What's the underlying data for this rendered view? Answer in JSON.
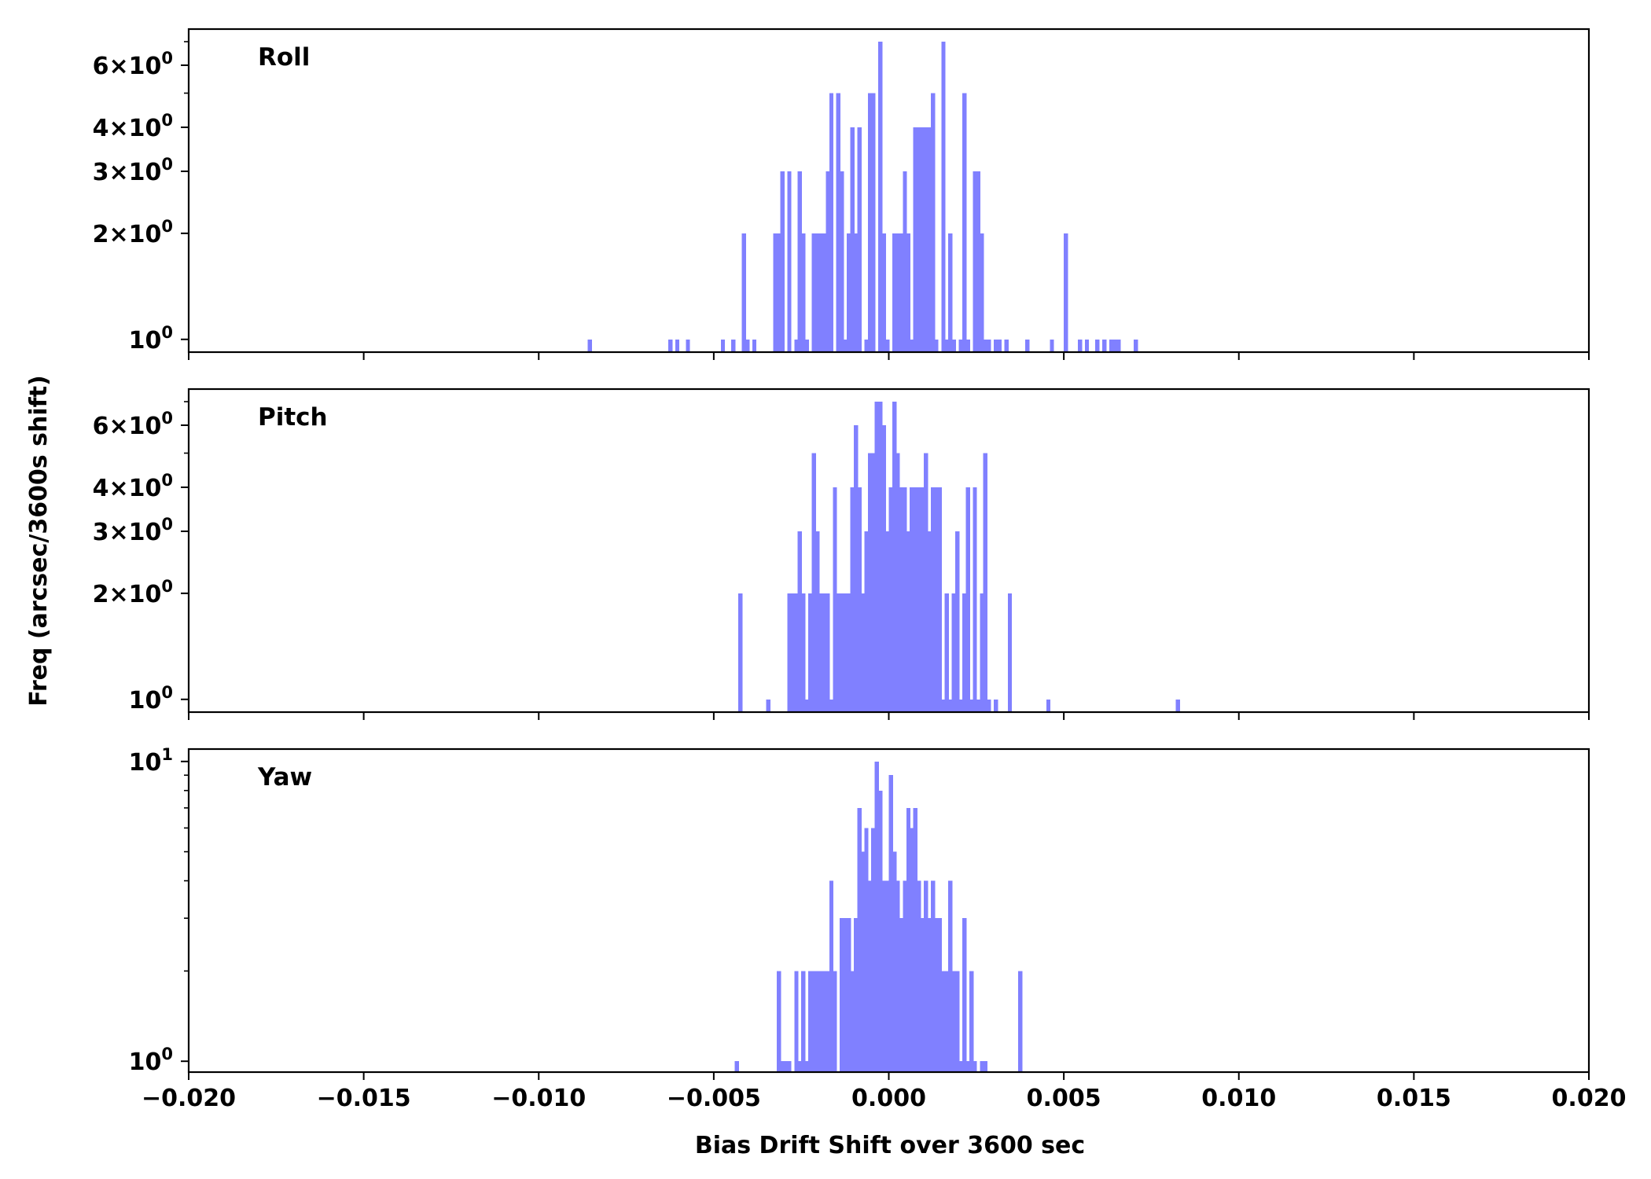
{
  "chart_data": {
    "type": "bar",
    "xlabel": "Bias Drift Shift over 3600 sec",
    "ylabel": "Freq (arcsec/3600s shift)",
    "xlim": [
      -0.02,
      0.02
    ],
    "xticks": [
      -0.02,
      -0.015,
      -0.01,
      -0.005,
      0.0,
      0.005,
      0.01,
      0.015,
      0.02
    ],
    "xtick_labels": [
      "−0.020",
      "−0.015",
      "−0.010",
      "−0.005",
      "0.000",
      "0.005",
      "0.010",
      "0.015",
      "0.020"
    ],
    "bar_color": "#8080ff",
    "bin_width": 0.00012,
    "grid": false,
    "panels": [
      {
        "name": "Roll",
        "yscale": "log",
        "ylim": [
          0.92,
          7.6
        ],
        "yticks": [
          {
            "value": 1,
            "base": "10",
            "exp": "0"
          },
          {
            "value": 2,
            "base": "2×10",
            "exp": "0"
          },
          {
            "value": 3,
            "base": "3×10",
            "exp": "0"
          },
          {
            "value": 4,
            "base": "4×10",
            "exp": "0"
          },
          {
            "value": 6,
            "base": "6×10",
            "exp": "0"
          }
        ],
        "minor_yticks": [
          5,
          7
        ],
        "bins": [
          [
            -0.0086,
            1
          ],
          [
            -0.0063,
            1
          ],
          [
            -0.0061,
            1
          ],
          [
            -0.0058,
            1
          ],
          [
            -0.0048,
            1
          ],
          [
            -0.0045,
            1
          ],
          [
            -0.0042,
            2
          ],
          [
            -0.0041,
            1
          ],
          [
            -0.0039,
            1
          ],
          [
            -0.0033,
            2
          ],
          [
            -0.0032,
            2
          ],
          [
            -0.0031,
            3
          ],
          [
            -0.0029,
            3
          ],
          [
            -0.0027,
            1
          ],
          [
            -0.0026,
            3
          ],
          [
            -0.0025,
            2
          ],
          [
            -0.0024,
            1
          ],
          [
            -0.0022,
            2
          ],
          [
            -0.0021,
            2
          ],
          [
            -0.002,
            2
          ],
          [
            -0.0019,
            2
          ],
          [
            -0.0018,
            3
          ],
          [
            -0.0017,
            5
          ],
          [
            -0.0015,
            5
          ],
          [
            -0.0014,
            3
          ],
          [
            -0.0013,
            1
          ],
          [
            -0.0012,
            2
          ],
          [
            -0.0011,
            4
          ],
          [
            -0.001,
            2
          ],
          [
            -0.0009,
            4
          ],
          [
            -0.0007,
            1
          ],
          [
            -0.0006,
            5
          ],
          [
            -0.0005,
            5
          ],
          [
            -0.0003,
            7
          ],
          [
            -0.0002,
            2
          ],
          [
            -0.0001,
            1
          ],
          [
            0.0001,
            2
          ],
          [
            0.0002,
            2
          ],
          [
            0.0003,
            2
          ],
          [
            0.0004,
            3
          ],
          [
            0.0005,
            2
          ],
          [
            0.0006,
            1
          ],
          [
            0.0007,
            4
          ],
          [
            0.0008,
            4
          ],
          [
            0.0009,
            4
          ],
          [
            0.001,
            4
          ],
          [
            0.0011,
            4
          ],
          [
            0.0012,
            5
          ],
          [
            0.0013,
            1
          ],
          [
            0.0015,
            7
          ],
          [
            0.0016,
            1
          ],
          [
            0.0017,
            2
          ],
          [
            0.0018,
            1
          ],
          [
            0.002,
            1
          ],
          [
            0.0021,
            5
          ],
          [
            0.0022,
            1
          ],
          [
            0.0024,
            3
          ],
          [
            0.0025,
            3
          ],
          [
            0.0026,
            2
          ],
          [
            0.0027,
            1
          ],
          [
            0.0028,
            1
          ],
          [
            0.003,
            1
          ],
          [
            0.0031,
            1
          ],
          [
            0.0033,
            1
          ],
          [
            0.0039,
            1
          ],
          [
            0.0046,
            1
          ],
          [
            0.005,
            2
          ],
          [
            0.0054,
            1
          ],
          [
            0.0056,
            1
          ],
          [
            0.0059,
            1
          ],
          [
            0.0061,
            1
          ],
          [
            0.0063,
            1
          ],
          [
            0.0064,
            1
          ],
          [
            0.0065,
            1
          ],
          [
            0.007,
            1
          ]
        ]
      },
      {
        "name": "Pitch",
        "yscale": "log",
        "ylim": [
          0.92,
          7.6
        ],
        "yticks": [
          {
            "value": 1,
            "base": "10",
            "exp": "0"
          },
          {
            "value": 2,
            "base": "2×10",
            "exp": "0"
          },
          {
            "value": 3,
            "base": "3×10",
            "exp": "0"
          },
          {
            "value": 4,
            "base": "4×10",
            "exp": "0"
          },
          {
            "value": 6,
            "base": "6×10",
            "exp": "0"
          }
        ],
        "minor_yticks": [
          5,
          7
        ],
        "bins": [
          [
            -0.0043,
            2
          ],
          [
            -0.0035,
            1
          ],
          [
            -0.0029,
            2
          ],
          [
            -0.0028,
            2
          ],
          [
            -0.0027,
            2
          ],
          [
            -0.0026,
            3
          ],
          [
            -0.0025,
            2
          ],
          [
            -0.0024,
            1
          ],
          [
            -0.0023,
            2
          ],
          [
            -0.0022,
            5
          ],
          [
            -0.0021,
            3
          ],
          [
            -0.002,
            2
          ],
          [
            -0.0019,
            2
          ],
          [
            -0.0018,
            2
          ],
          [
            -0.0017,
            1
          ],
          [
            -0.0016,
            4
          ],
          [
            -0.0015,
            2
          ],
          [
            -0.0014,
            2
          ],
          [
            -0.0013,
            2
          ],
          [
            -0.0012,
            2
          ],
          [
            -0.0011,
            4
          ],
          [
            -0.001,
            6
          ],
          [
            -0.0009,
            4
          ],
          [
            -0.0008,
            2
          ],
          [
            -0.0007,
            3
          ],
          [
            -0.0006,
            5
          ],
          [
            -0.0005,
            5
          ],
          [
            -0.0004,
            7
          ],
          [
            -0.0003,
            7
          ],
          [
            -0.0002,
            6
          ],
          [
            -0.0001,
            3
          ],
          [
            0.0,
            4
          ],
          [
            0.0001,
            7
          ],
          [
            0.0002,
            5
          ],
          [
            0.0003,
            4
          ],
          [
            0.0004,
            4
          ],
          [
            0.0005,
            3
          ],
          [
            0.0006,
            4
          ],
          [
            0.0007,
            4
          ],
          [
            0.0008,
            4
          ],
          [
            0.0009,
            4
          ],
          [
            0.001,
            5
          ],
          [
            0.0011,
            3
          ],
          [
            0.0012,
            4
          ],
          [
            0.0013,
            4
          ],
          [
            0.0014,
            4
          ],
          [
            0.0015,
            1
          ],
          [
            0.0016,
            2
          ],
          [
            0.0017,
            1
          ],
          [
            0.0018,
            2
          ],
          [
            0.0019,
            3
          ],
          [
            0.002,
            1
          ],
          [
            0.0021,
            2
          ],
          [
            0.0022,
            4
          ],
          [
            0.0023,
            1
          ],
          [
            0.0024,
            4
          ],
          [
            0.0025,
            1
          ],
          [
            0.0026,
            2
          ],
          [
            0.0027,
            5
          ],
          [
            0.0028,
            1
          ],
          [
            0.003,
            1
          ],
          [
            0.0034,
            2
          ],
          [
            0.0045,
            1
          ],
          [
            0.0082,
            1
          ]
        ]
      },
      {
        "name": "Yaw",
        "yscale": "log",
        "ylim": [
          0.92,
          11.0
        ],
        "yticks": [
          {
            "value": 1,
            "base": "10",
            "exp": "0"
          },
          {
            "value": 10,
            "base": "10",
            "exp": "1"
          }
        ],
        "minor_yticks": [
          2,
          3,
          4,
          5,
          6,
          7,
          8,
          9
        ],
        "bins": [
          [
            -0.0044,
            1
          ],
          [
            -0.0032,
            2
          ],
          [
            -0.0031,
            1
          ],
          [
            -0.003,
            1
          ],
          [
            -0.0029,
            1
          ],
          [
            -0.0027,
            2
          ],
          [
            -0.0026,
            1
          ],
          [
            -0.0025,
            2
          ],
          [
            -0.0024,
            1
          ],
          [
            -0.0023,
            2
          ],
          [
            -0.0022,
            2
          ],
          [
            -0.0021,
            2
          ],
          [
            -0.002,
            2
          ],
          [
            -0.0019,
            2
          ],
          [
            -0.0018,
            2
          ],
          [
            -0.0017,
            4
          ],
          [
            -0.0016,
            2
          ],
          [
            -0.0014,
            3
          ],
          [
            -0.0013,
            3
          ],
          [
            -0.0012,
            3
          ],
          [
            -0.0011,
            2
          ],
          [
            -0.001,
            3
          ],
          [
            -0.0009,
            7
          ],
          [
            -0.0008,
            5
          ],
          [
            -0.0007,
            6
          ],
          [
            -0.0006,
            4
          ],
          [
            -0.0005,
            6
          ],
          [
            -0.0004,
            10
          ],
          [
            -0.0003,
            8
          ],
          [
            -0.0002,
            4
          ],
          [
            -0.0001,
            4
          ],
          [
            0.0,
            9
          ],
          [
            0.0001,
            5
          ],
          [
            0.0002,
            4
          ],
          [
            0.0003,
            3
          ],
          [
            0.0004,
            4
          ],
          [
            0.0005,
            7
          ],
          [
            0.0006,
            6
          ],
          [
            0.0007,
            7
          ],
          [
            0.0008,
            4
          ],
          [
            0.0009,
            3
          ],
          [
            0.001,
            4
          ],
          [
            0.0011,
            3
          ],
          [
            0.0012,
            4
          ],
          [
            0.0013,
            3
          ],
          [
            0.0014,
            3
          ],
          [
            0.0015,
            2
          ],
          [
            0.0016,
            2
          ],
          [
            0.0017,
            4
          ],
          [
            0.0018,
            2
          ],
          [
            0.0019,
            2
          ],
          [
            0.002,
            1
          ],
          [
            0.0021,
            3
          ],
          [
            0.0022,
            1
          ],
          [
            0.0023,
            2
          ],
          [
            0.0024,
            1
          ],
          [
            0.0026,
            1
          ],
          [
            0.0027,
            1
          ],
          [
            0.0037,
            2
          ]
        ]
      }
    ]
  }
}
